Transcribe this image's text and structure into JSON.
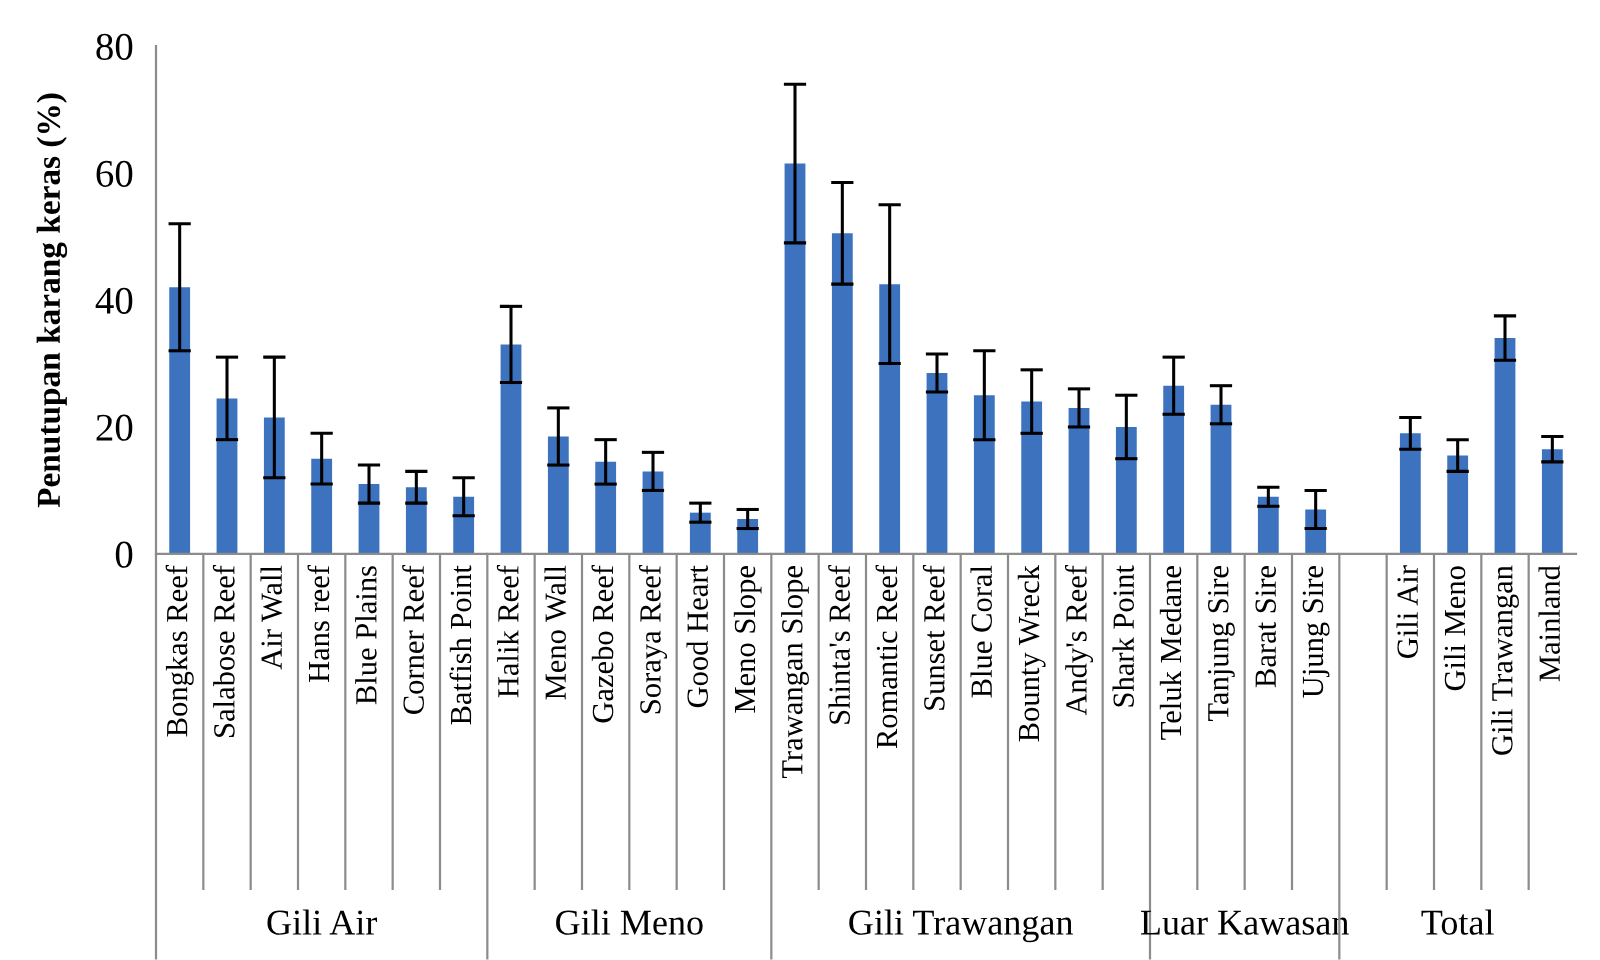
{
  "chart_data": [
    {
      "type": "bar",
      "xlabel": "Gili Air",
      "ylabel": "Penutupan karang keras (%)",
      "categories": [
        "Bongkas Reef",
        "Salabose Reef",
        "Air Wall",
        "Hans reef",
        "Blue Plains",
        "Corner Reef",
        "Batfish Point"
      ],
      "values": [
        42,
        24.5,
        21.5,
        15,
        11,
        10.5,
        9
      ],
      "errors": [
        10,
        6.5,
        9.5,
        4,
        3,
        2.5,
        3
      ],
      "color": "#3d72bf",
      "ylim": [
        0,
        80
      ],
      "yticks": [
        0,
        20,
        40,
        60,
        80
      ]
    },
    {
      "type": "bar",
      "xlabel": "Gili Meno",
      "categories": [
        "Halik Reef",
        "Meno Wall",
        "Gazebo Reef",
        "Soraya Reef",
        "Good Heart",
        "Meno Slope"
      ],
      "values": [
        33,
        18.5,
        14.5,
        13,
        6.5,
        5.5
      ],
      "errors": [
        6,
        4.5,
        3.5,
        3,
        1.5,
        1.5
      ],
      "color": "#3d72bf",
      "ylim": [
        0,
        80
      ],
      "yticks": [
        0,
        20,
        40,
        60,
        80
      ],
      "tick_labels": "x"
    },
    {
      "type": "bar",
      "xlabel": "Gili Trawangan",
      "categories": [
        "Trawangan Slope",
        "Shinta's Reef",
        "Romantic Reef",
        "Sunset Reef",
        "Blue Coral",
        "Bounty Wreck",
        "Andy's Reef",
        "Shark Point"
      ],
      "values": [
        61.5,
        50.5,
        42.5,
        28.5,
        25,
        24,
        23,
        20
      ],
      "errors": [
        12.5,
        8,
        12.5,
        3,
        7,
        5,
        3,
        5
      ],
      "color": "#3d72bf",
      "ylim": [
        0,
        80
      ],
      "yticks": [
        0,
        20,
        40,
        60,
        80
      ],
      "tick_labels": "x"
    },
    {
      "type": "bar",
      "xlabel": "Luar Kawasan",
      "categories": [
        "Teluk Medane",
        "Tanjung Sire",
        "Barat Sire",
        "Ujung Sire"
      ],
      "values": [
        26.5,
        23.5,
        9,
        7
      ],
      "errors": [
        4.5,
        3,
        1.5,
        3
      ],
      "color": "#3d72bf",
      "ylim": [
        0,
        80
      ],
      "yticks": [
        0,
        20,
        40,
        60,
        80
      ],
      "tick_labels": "x"
    },
    {
      "type": "bar",
      "xlabel": "Total",
      "categories": [
        null,
        "Gili Air",
        "Gili Meno",
        "Gili Trawangan",
        "Mainland"
      ],
      "values": [
        null,
        19,
        15.5,
        34,
        16.5
      ],
      "errors": [
        null,
        2.5,
        2.5,
        3.5,
        2
      ],
      "color": "#3d72bf",
      "ylim": [
        0,
        80
      ],
      "yticks": [
        0,
        20,
        40,
        60,
        80
      ],
      "tick_labels": "x"
    }
  ]
}
